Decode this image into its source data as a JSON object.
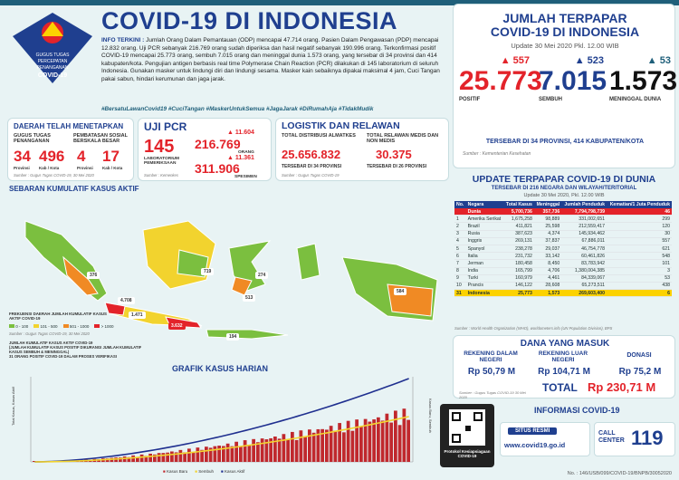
{
  "header": {
    "title": "COVID-19 DI INDONESIA",
    "logo_text": "GUGUS TUGAS PERCEPATAN PENANGANAN COVID-19",
    "info_lead": "INFO TERKINI :",
    "info_body": "Jumlah Orang Dalam Pemantauan (ODP) mencapai 47.714 orang. Pasien Dalam Pengawasan (PDP) mencapai 12.832 orang. Uji PCR sebanyak 216.769 orang sudah diperiksa dan hasil negatif sebanyak 190.996 orang. Terkonfirmasi positif COVID-19 mencapai 25.773 orang, sembuh 7.015 orang dan meninggal dunia 1.573 orang, yang tersebar di 34 provinsi dan 414 kabupaten/kota. Pengujian antigen berbasis real time Polymerase Chain Reaction (PCR) dilakukan di 145 laboratorium di seluruh Indonesia. Gunakan masker untuk lindungi diri dan lindungi sesama. Masker kain sebaiknya dipakai maksimal 4 jam, Cuci Tangan pakai sabun, hindari kerumunan dan jaga jarak.",
    "hashtags": "#BersatuLawanCovid19 #CuciTangan #MaskerUntukSemua #JagaJarak #DiRumahAja #TidakMudik"
  },
  "terpapar": {
    "title_line1": "JUMLAH TERPAPAR",
    "title_line2": "COVID-19 DI INDONESIA",
    "update": "Update 30 Mei 2020 Pkl. 12.00 WIB",
    "positif": {
      "value": "25.773",
      "delta": "557",
      "label": "POSITIF",
      "color": "#e3232a"
    },
    "sembuh": {
      "value": "7.015",
      "delta": "523",
      "label": "SEMBUH",
      "color": "#1f3f8f"
    },
    "meninggal": {
      "value": "1.573",
      "delta": "53",
      "label": "MENINGGAL DUNIA",
      "color": "#111111"
    },
    "provinsi": "TERSEBAR DI 34 PROVINSI, 414 KABUPATEN/KOTA",
    "source": "Sumber : Kementerian Kesehatan"
  },
  "daerah": {
    "title_line1": "DAERAH TELAH MENETAPKAN",
    "gugus_label": "GUGUS TUGAS PENANGANAN",
    "psbb_label": "PEMBATASAN SOSIAL BERSKALA BESAR",
    "gugus_prov": "34",
    "gugus_prov_lbl": "Provinsi",
    "gugus_kab": "496",
    "gugus_kab_lbl": "Kab / Kota",
    "psbb_prov": "4",
    "psbb_prov_lbl": "Provinsi",
    "psbb_kab": "17",
    "psbb_kab_lbl": "Kab / Kota",
    "source": "Sumber : Gugus Tugas COVID-19, 30 Mei 2020"
  },
  "pcr": {
    "title": "UJI PCR",
    "lab": "145",
    "lab_lbl": "LABORATORIUM PEMERIKSAAN",
    "orang_delta": "11.604",
    "orang": "216.769",
    "orang_lbl": "ORANG",
    "spesimen_delta": "11.361",
    "spesimen": "311.906",
    "spesimen_lbl": "SPESIMEN",
    "source": "Sumber : Kemenkes"
  },
  "logistik": {
    "title": "LOGISTIK DAN RELAWAN",
    "alkes_lbl": "TOTAL DISTRIBUSI ALMATKES",
    "alkes": "25.656.832",
    "alkes_prov": "TERSEBAR DI 34 PROVINSI",
    "relawan_lbl": "TOTAL RELAWAN MEDIS DAN NON MEDIS",
    "relawan": "30.375",
    "relawan_prov": "TERSEBAR DI 26 PROVINSI",
    "source": "Sumber : Gugus Tugas COVID-19"
  },
  "peta": {
    "title": "SEBARAN KUMULATIF KASUS AKTIF",
    "legend_title": "FREKUENSI DAERAH JUMLAH KUMULATIF KASUS AKTIF COVID-19",
    "legend": [
      {
        "label": "0 - 100",
        "color": "#7bbf3f"
      },
      {
        "label": "101 - 500",
        "color": "#f2d32e"
      },
      {
        "label": "501 - 1000",
        "color": "#f08a24"
      },
      {
        "label": "> 1000",
        "color": "#e3232a"
      }
    ],
    "source": "Sumber : Gugus Tugas COVID-19, 30 Mei 2020",
    "note1": "JUMLAH KUMULATIF KASUS AKTIF COVID-19",
    "note2": "(JUMLAH KUMULATIF KASUS POSITIF DIKURANGI JUMLAH KUMULATIF KASUS SEMBUH & MENINGGAL)",
    "note3": "31 ORANG POSITIF COVID-19 DALAM PROSES VERIFIKASI",
    "labels": [
      "3.632",
      "1.471",
      "4.708",
      "719",
      "584",
      "376",
      "513",
      "274",
      "194"
    ]
  },
  "grafik": {
    "title": "GRAFIK KASUS HARIAN",
    "ylabel_left": "Total Kasus, Kasus Aktif",
    "ylabel_right": "Kasus Baru, Sembuh",
    "legend": [
      "Kasus Baru",
      "Sembuh",
      "Kasus Aktif"
    ],
    "colors": {
      "bar": "#c0282d",
      "blue": "#1f2f8f",
      "yellow": "#f2d32e"
    }
  },
  "dunia": {
    "title": "UPDATE TERPAPAR COVID-19 DI DUNIA",
    "subtitle": "TERSEBAR DI 216 NEGARA DAN WILAYAH/TERITORIAL",
    "update": "Update 30 Mei 2020, Pkl. 12.00 WIB",
    "headers": [
      "No.",
      "Negara",
      "Total Kasus",
      "Meninggal",
      "Jumlah Penduduk",
      "Kematian/1 Juta Penduduk"
    ],
    "rows": [
      [
        "",
        "Dunia",
        "5,700,736",
        "357,736",
        "7,794,798,739",
        "46"
      ],
      [
        "1",
        "Amerika Serikat",
        "1,675,258",
        "98,889",
        "331,002,651",
        "299"
      ],
      [
        "2",
        "Brazil",
        "411,821",
        "25,598",
        "212,559,417",
        "120"
      ],
      [
        "3",
        "Rusia",
        "387,623",
        "4,374",
        "145,934,462",
        "30"
      ],
      [
        "4",
        "Inggris",
        "269,131",
        "37,837",
        "67,886,011",
        "557"
      ],
      [
        "5",
        "Spanyol",
        "238,278",
        "29,037",
        "46,754,778",
        "621"
      ],
      [
        "6",
        "Italia",
        "231,732",
        "33,142",
        "60,461,826",
        "548"
      ],
      [
        "7",
        "Jerman",
        "180,458",
        "8,450",
        "83,783,942",
        "101"
      ],
      [
        "8",
        "India",
        "165,799",
        "4,706",
        "1,380,004,385",
        "3"
      ],
      [
        "9",
        "Turki",
        "160,979",
        "4,461",
        "84,339,067",
        "53"
      ],
      [
        "10",
        "Prancis",
        "146,122",
        "28,608",
        "65,273,511",
        "438"
      ],
      [
        "31",
        "Indonesia",
        "25,773",
        "1,573",
        "269,603,400",
        "6"
      ]
    ],
    "source": "Sumber : World Health Organization (WHO), worldometers.info (UN Population Division), BPS"
  },
  "dana": {
    "title": "DANA YANG MASUK",
    "dalam_lbl": "REKENING DALAM NEGERI",
    "dalam": "Rp 50,79 M",
    "luar_lbl": "REKENING LUAR NEGERI",
    "luar": "Rp 104,71 M",
    "donasi_lbl": "DONASI",
    "donasi": "Rp 75,2 M",
    "total_lbl": "TOTAL",
    "total": "Rp 230,71 M",
    "source": "Sumber : Gugus Tugas COVID-19 30 Mei 2020"
  },
  "informasi": {
    "title": "INFORMASI COVID-19",
    "situs_lbl": "SITUS RESMI",
    "situs": "www.covid19.go.id",
    "call_lbl": "CALL CENTER",
    "call": "119",
    "protokol": "Protokol Kesiapsiagaan COVID-19"
  },
  "footer": {
    "text": "No. : 146/USB/099/COVID-19/BNPB/30052020"
  }
}
